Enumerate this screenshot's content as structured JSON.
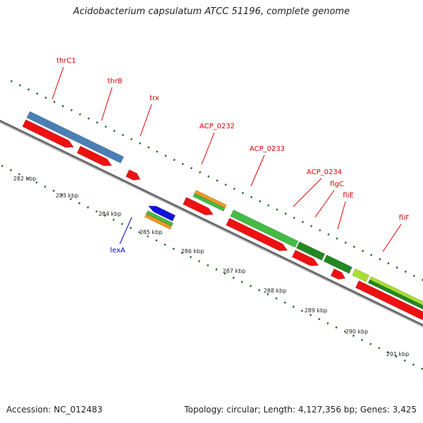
{
  "header": {
    "title": "Acidobacterium capsulatum ATCC 51196, complete genome"
  },
  "footer": {
    "accession": "Accession: NC_012483",
    "stats": "Topology: circular; Length: 4,127,356 bp; Genes: 3,425"
  },
  "colors": {
    "backbone": "#888888",
    "cds": "#ee1111",
    "gene_label": "#dd0000",
    "reverse_label": "#0000cc",
    "rrna_blue": "#4a7fb5",
    "green": "#44bb44",
    "dark_green": "#228822",
    "light_green": "#aadd33",
    "orange": "#ee9922",
    "tick": "#226622"
  },
  "gene_labels": [
    "thrC1",
    "thrB",
    "trx",
    "ACP_0232",
    "ACP_0233",
    "ACP_0234",
    "flgC",
    "fliE",
    "fliF"
  ],
  "reverse_labels": [
    "lexA"
  ],
  "kbp_ticks": [
    "282 kbp",
    "283 kbp",
    "284 kbp",
    "285 kbp",
    "286 kbp",
    "287 kbp",
    "288 kbp",
    "289 kbp",
    "290 kbp",
    "291 kbp"
  ]
}
